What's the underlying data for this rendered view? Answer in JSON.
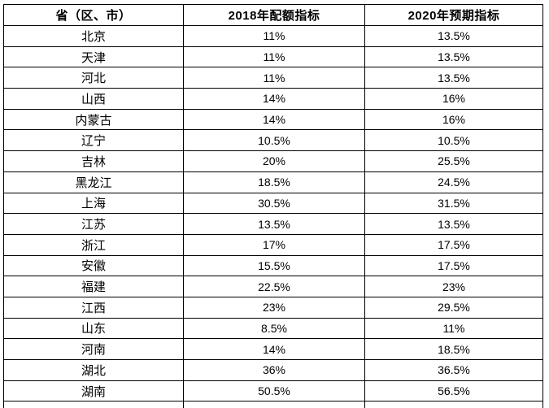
{
  "colors": {
    "background": "#ffffff",
    "border": "#000000",
    "text": "#000000"
  },
  "chart_data": {
    "type": "table",
    "columns": [
      "省（区、市）",
      "2018年配额指标",
      "2020年预期指标"
    ],
    "rows": [
      {
        "region": "北京",
        "quota_2018": "11%",
        "expected_2020": "13.5%"
      },
      {
        "region": "天津",
        "quota_2018": "11%",
        "expected_2020": "13.5%"
      },
      {
        "region": "河北",
        "quota_2018": "11%",
        "expected_2020": "13.5%"
      },
      {
        "region": "山西",
        "quota_2018": "14%",
        "expected_2020": "16%"
      },
      {
        "region": "内蒙古",
        "quota_2018": "14%",
        "expected_2020": "16%"
      },
      {
        "region": "辽宁",
        "quota_2018": "10.5%",
        "expected_2020": "10.5%"
      },
      {
        "region": "吉林",
        "quota_2018": "20%",
        "expected_2020": "25.5%"
      },
      {
        "region": "黑龙江",
        "quota_2018": "18.5%",
        "expected_2020": "24.5%"
      },
      {
        "region": "上海",
        "quota_2018": "30.5%",
        "expected_2020": "31.5%"
      },
      {
        "region": "江苏",
        "quota_2018": "13.5%",
        "expected_2020": "13.5%"
      },
      {
        "region": "浙江",
        "quota_2018": "17%",
        "expected_2020": "17.5%"
      },
      {
        "region": "安徽",
        "quota_2018": "15.5%",
        "expected_2020": "17.5%"
      },
      {
        "region": "福建",
        "quota_2018": "22.5%",
        "expected_2020": "23%"
      },
      {
        "region": "江西",
        "quota_2018": "23%",
        "expected_2020": "29.5%"
      },
      {
        "region": "山东",
        "quota_2018": "8.5%",
        "expected_2020": "11%"
      },
      {
        "region": "河南",
        "quota_2018": "14%",
        "expected_2020": "18.5%"
      },
      {
        "region": "湖北",
        "quota_2018": "36%",
        "expected_2020": "36.5%"
      },
      {
        "region": "湖南",
        "quota_2018": "50.5%",
        "expected_2020": "56.5%"
      }
    ]
  }
}
